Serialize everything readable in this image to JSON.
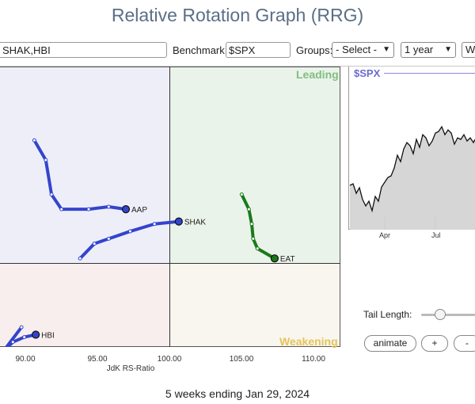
{
  "app": {
    "title": "Relative Rotation Graph (RRG)"
  },
  "controls": {
    "symbols_value": "SHAK,HBI",
    "benchmark_label": "Benchmark:",
    "benchmark_value": "$SPX",
    "groups_label": "Groups:",
    "groups_selected": "- Select -",
    "period_selected": "1 year",
    "extra_selected": "W"
  },
  "quadrants": {
    "leading": "Leading",
    "weakening": "Weakening"
  },
  "colors": {
    "improving": "#eeeef9",
    "leading": "#eaf3ea",
    "lagging": "#f9eeee",
    "weakening": "#f8f6ee",
    "tail_blue": "#3344cc",
    "tail_green": "#1a7a1a"
  },
  "chart_data": {
    "type": "scatter",
    "xlabel": "JdK RS-Ratio",
    "x_ticks": [
      "90.00",
      "95.00",
      "100.00",
      "105.00",
      "110.00"
    ],
    "xlim": [
      87.4,
      111.2
    ],
    "ylim": [
      99.1,
      104.8
    ],
    "center": [
      100,
      100
    ],
    "series": [
      {
        "name": "AAP",
        "color": "#3344cc",
        "points": [
          [
            89.8,
            103.3
          ],
          [
            90.6,
            102.9
          ],
          [
            91.0,
            102.2
          ],
          [
            91.7,
            101.9
          ],
          [
            93.6,
            101.9
          ],
          [
            95.0,
            101.95
          ],
          [
            96.2,
            101.9
          ]
        ]
      },
      {
        "name": "SHAK",
        "color": "#3344cc",
        "points": [
          [
            93.0,
            100.9
          ],
          [
            94.0,
            101.2
          ],
          [
            95.0,
            101.3
          ],
          [
            96.5,
            101.45
          ],
          [
            98.2,
            101.6
          ],
          [
            99.9,
            101.65
          ]
        ]
      },
      {
        "name": "EAT",
        "color": "#1a7a1a",
        "points": [
          [
            104.3,
            102.2
          ],
          [
            104.8,
            101.9
          ],
          [
            105.0,
            101.6
          ],
          [
            105.1,
            101.3
          ],
          [
            105.4,
            101.1
          ],
          [
            106.6,
            100.9
          ]
        ]
      },
      {
        "name": "HBI",
        "color": "#3344cc",
        "points": [
          [
            88.9,
            99.5
          ],
          [
            87.6,
            99.0
          ],
          [
            88.3,
            99.2
          ],
          [
            89.1,
            99.3
          ],
          [
            89.9,
            99.35
          ]
        ]
      }
    ],
    "benchmark_chart": {
      "title": "$SPX",
      "months": [
        "Apr",
        "Jul"
      ]
    }
  },
  "footer": {
    "period_text": "5 weeks ending Jan 29, 2024"
  },
  "tail": {
    "label": "Tail Length:"
  },
  "buttons": {
    "animate": "animate",
    "plus": "+",
    "minus": "-"
  }
}
